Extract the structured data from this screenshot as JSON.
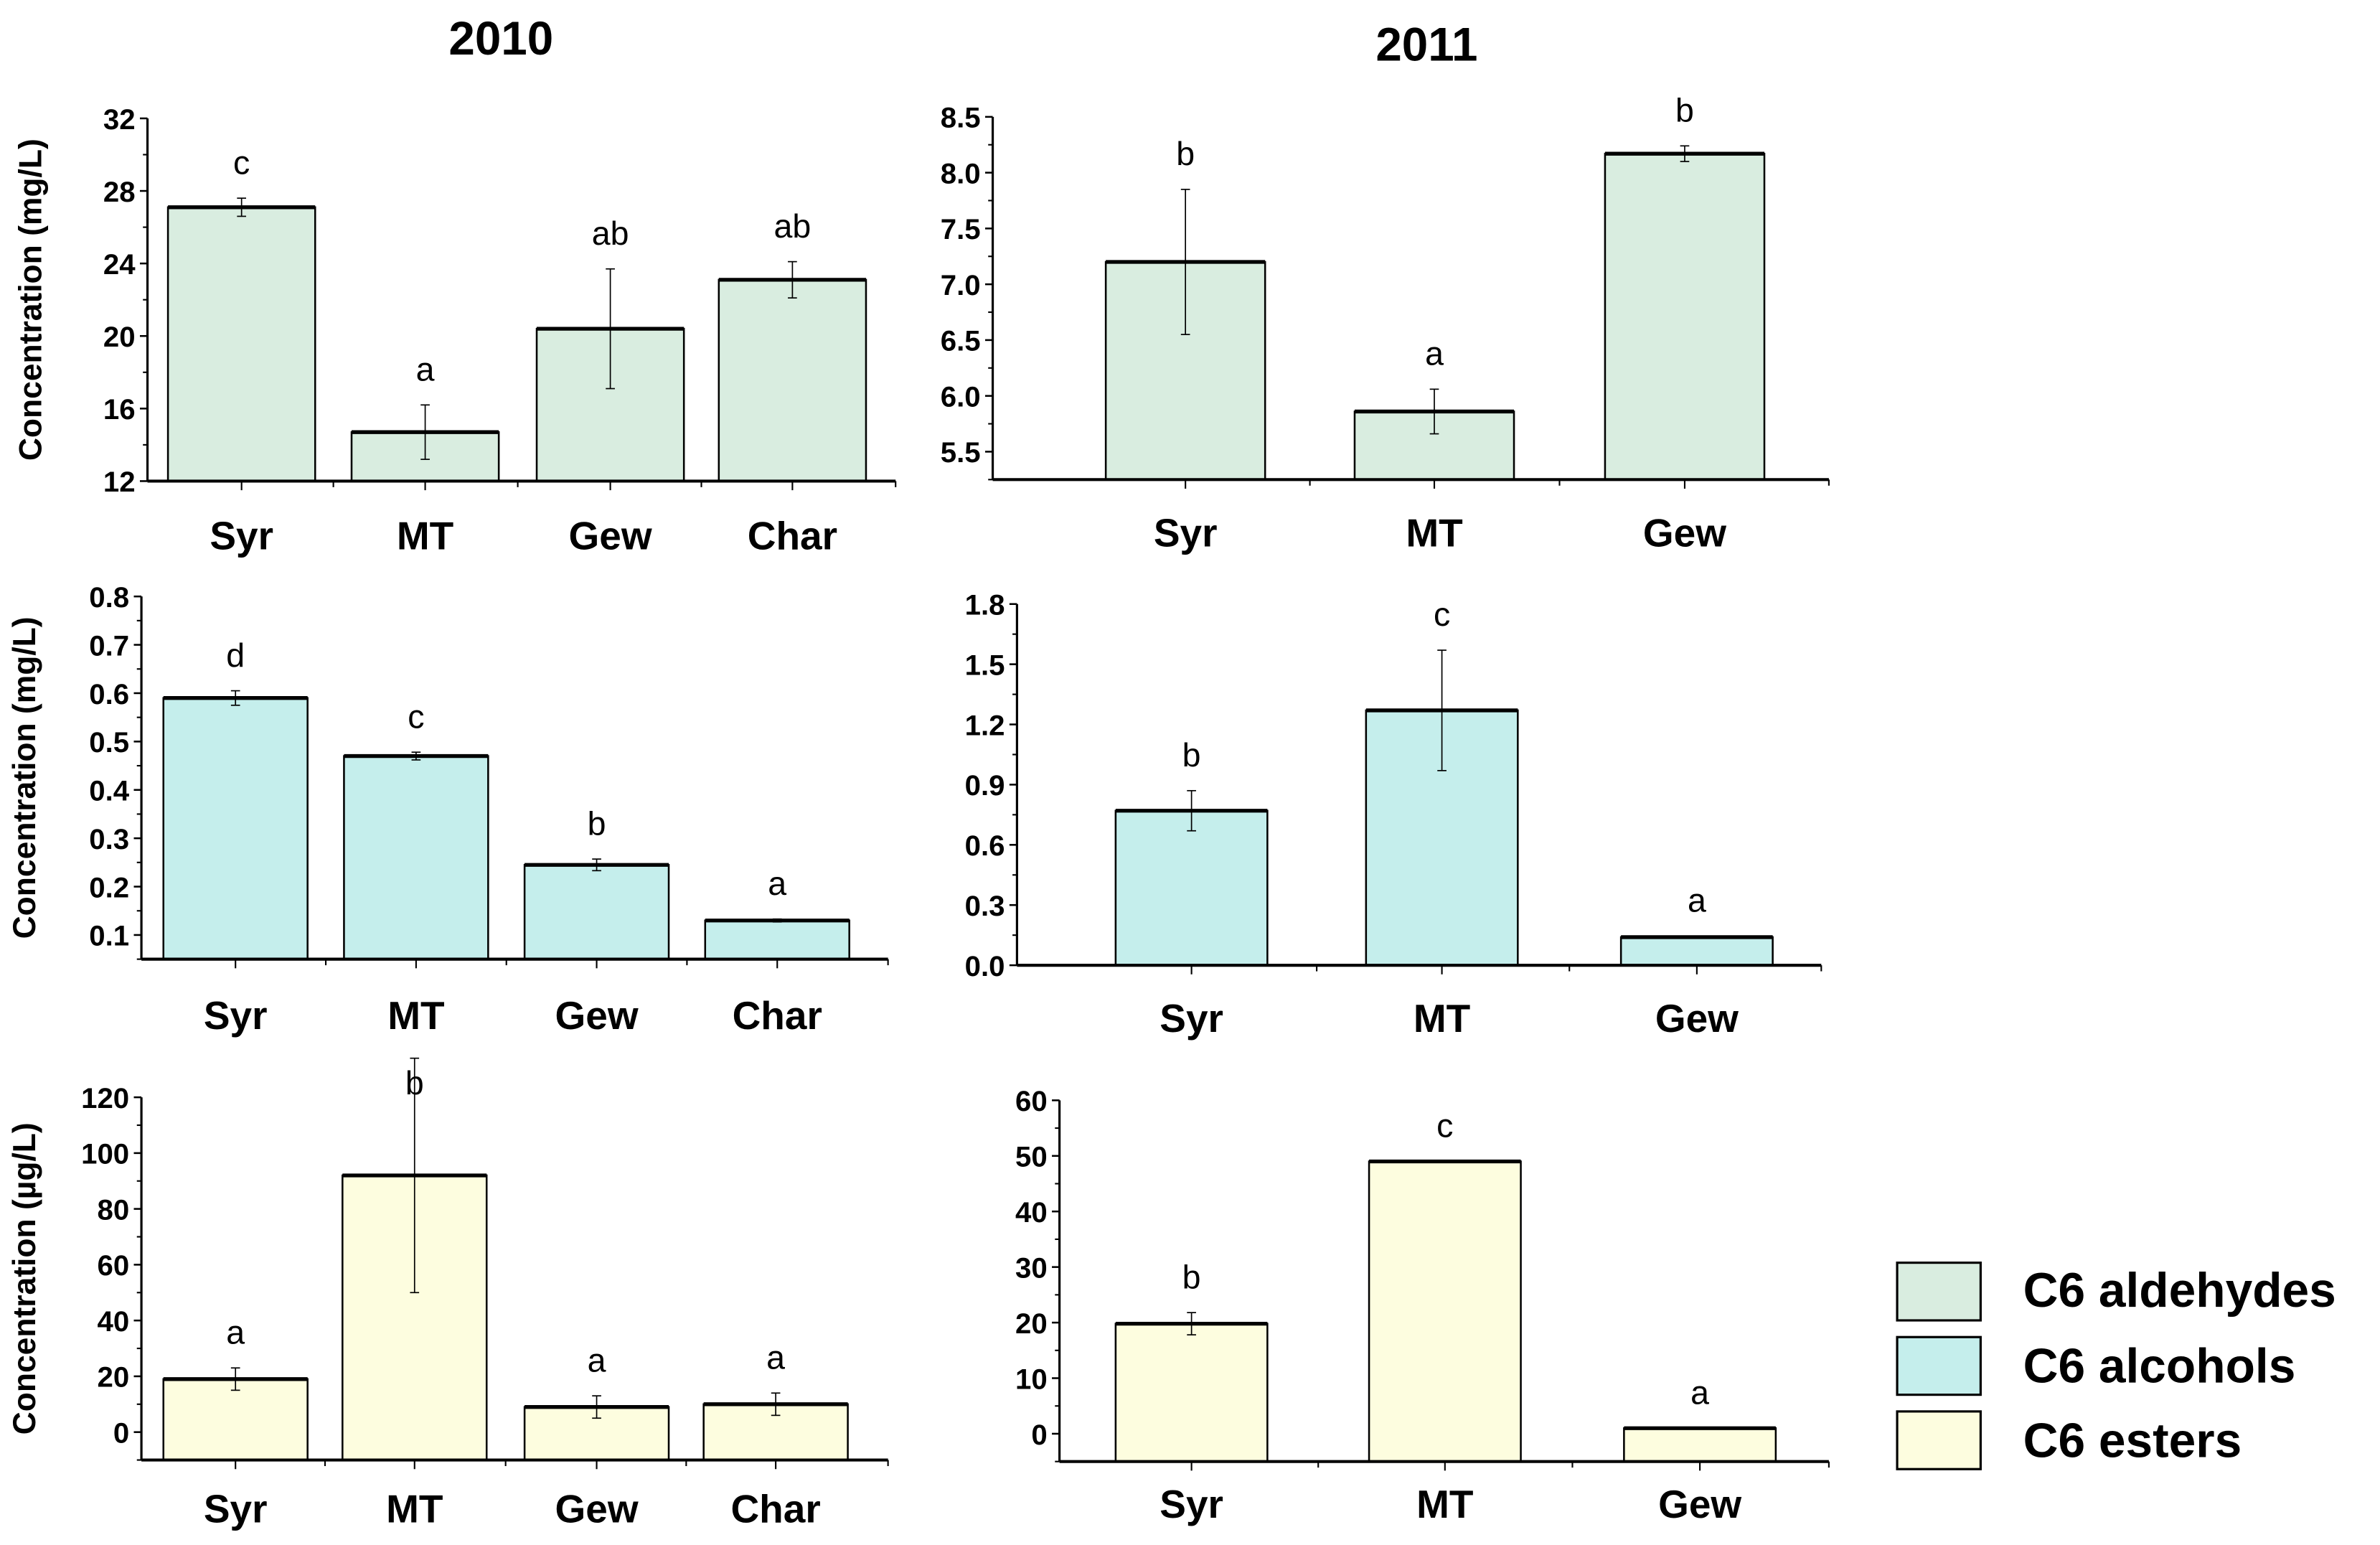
{
  "titles": {
    "left": "2010",
    "right": "2011"
  },
  "legend": [
    {
      "label": "C6 aldehydes",
      "color": "#d9ede0"
    },
    {
      "label": "C6 alcohols",
      "color": "#c5eeec"
    },
    {
      "label": "C6 esters",
      "color": "#fdfddf"
    }
  ],
  "chart_data": [
    {
      "type": "bar",
      "title": "2010",
      "group": "C6 aldehydes",
      "ylabel": "Concentration (mg/L)",
      "categories": [
        "Syr",
        "MT",
        "Gew",
        "Char"
      ],
      "values": [
        27.1,
        14.7,
        20.4,
        23.1
      ],
      "errors": [
        0.5,
        1.5,
        3.3,
        1.0
      ],
      "letters": [
        "c",
        "a",
        "ab",
        "ab"
      ],
      "ylim": [
        12,
        32
      ],
      "yticks": [
        12,
        16,
        20,
        24,
        28,
        32
      ],
      "color": "#d9ede0"
    },
    {
      "type": "bar",
      "title": "2011",
      "group": "C6 aldehydes",
      "ylabel": "",
      "categories": [
        "Syr",
        "MT",
        "Gew"
      ],
      "values": [
        7.2,
        5.86,
        8.17
      ],
      "errors": [
        0.65,
        0.2,
        0.07
      ],
      "letters": [
        "b",
        "a",
        "b"
      ],
      "ylim": [
        5.25,
        8.5
      ],
      "yticks": [
        "5.5",
        "6.0",
        "6.5",
        "7.0",
        "7.5",
        "8.0",
        "8.5"
      ],
      "color": "#d9ede0"
    },
    {
      "type": "bar",
      "title": "2010",
      "group": "C6 alcohols",
      "ylabel": "Concentration (mg/L)",
      "categories": [
        "Syr",
        "MT",
        "Gew",
        "Char"
      ],
      "values": [
        0.59,
        0.47,
        0.245,
        0.13
      ],
      "errors": [
        0.015,
        0.008,
        0.012,
        0.003
      ],
      "letters": [
        "d",
        "c",
        "b",
        "a"
      ],
      "ylim": [
        0.05,
        0.8
      ],
      "yticks": [
        "0.1",
        "0.2",
        "0.3",
        "0.4",
        "0.5",
        "0.6",
        "0.7",
        "0.8"
      ],
      "color": "#c5eeec"
    },
    {
      "type": "bar",
      "title": "2011",
      "group": "C6 alcohols",
      "ylabel": "",
      "categories": [
        "Syr",
        "MT",
        "Gew"
      ],
      "values": [
        0.77,
        1.27,
        0.14
      ],
      "errors": [
        0.1,
        0.3,
        0.005
      ],
      "letters": [
        "b",
        "c",
        "a"
      ],
      "ylim": [
        0,
        1.8
      ],
      "yticks": [
        "0.0",
        "0.3",
        "0.6",
        "0.9",
        "1.2",
        "1.5",
        "1.8"
      ],
      "color": "#c5eeec"
    },
    {
      "type": "bar",
      "title": "2010",
      "group": "C6 esters",
      "ylabel": "Concentration (µg/L)",
      "categories": [
        "Syr",
        "MT",
        "Gew",
        "Char"
      ],
      "values": [
        19,
        92,
        9,
        10
      ],
      "errors": [
        4,
        42,
        4,
        4
      ],
      "letters": [
        "a",
        "b",
        "a",
        "a"
      ],
      "ylim": [
        -10,
        120
      ],
      "yticks": [
        0,
        20,
        40,
        60,
        80,
        100,
        120
      ],
      "color": "#fdfddf"
    },
    {
      "type": "bar",
      "title": "2011",
      "group": "C6 esters",
      "ylabel": "",
      "categories": [
        "Syr",
        "MT",
        "Gew"
      ],
      "values": [
        19.8,
        49,
        1
      ],
      "errors": [
        2,
        0,
        0
      ],
      "letters": [
        "b",
        "c",
        "a"
      ],
      "ylim": [
        -5,
        60
      ],
      "yticks": [
        0,
        10,
        20,
        30,
        40,
        50,
        60
      ],
      "color": "#fdfddf"
    }
  ]
}
